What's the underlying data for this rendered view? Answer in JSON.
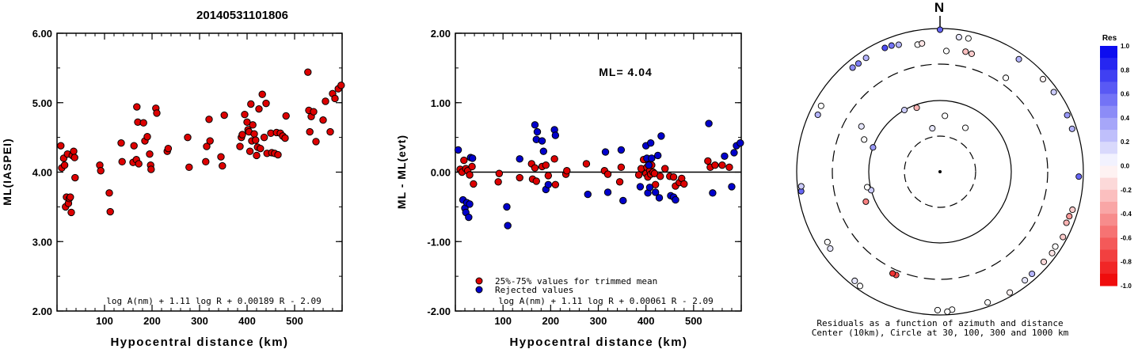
{
  "event_id": "20140531101806",
  "north_label": "N",
  "chart_data": [
    {
      "type": "scatter",
      "title": "",
      "xlabel": "Hypocentral distance (km)",
      "ylabel": "ML(IASPEI)",
      "xlim": [
        0,
        600
      ],
      "ylim": [
        2.0,
        6.0
      ],
      "xticks": [
        "100",
        "200",
        "300",
        "400",
        "500"
      ],
      "yticks": [
        "2.00",
        "3.00",
        "4.00",
        "5.00",
        "6.00"
      ],
      "formula": "log A(nm) + 1.11 log R + 0.00189 R - 2.09",
      "points": [
        [
          8,
          4.38
        ],
        [
          10,
          4.06
        ],
        [
          14,
          4.2
        ],
        [
          16,
          4.1
        ],
        [
          18,
          3.5
        ],
        [
          20,
          3.64
        ],
        [
          22,
          4.26
        ],
        [
          24,
          3.55
        ],
        [
          26,
          3.62
        ],
        [
          28,
          3.64
        ],
        [
          30,
          3.42
        ],
        [
          32,
          4.24
        ],
        [
          35,
          4.3
        ],
        [
          37,
          4.21
        ],
        [
          38,
          3.92
        ],
        [
          90,
          4.1
        ],
        [
          92,
          4.02
        ],
        [
          110,
          3.7
        ],
        [
          112,
          3.43
        ],
        [
          135,
          4.42
        ],
        [
          137,
          4.15
        ],
        [
          160,
          4.14
        ],
        [
          162,
          4.38
        ],
        [
          167,
          4.18
        ],
        [
          168,
          4.94
        ],
        [
          170,
          4.72
        ],
        [
          172,
          4.12
        ],
        [
          182,
          4.71
        ],
        [
          185,
          4.45
        ],
        [
          190,
          4.51
        ],
        [
          195,
          4.26
        ],
        [
          197,
          4.1
        ],
        [
          198,
          4.04
        ],
        [
          208,
          4.92
        ],
        [
          210,
          4.85
        ],
        [
          232,
          4.3
        ],
        [
          234,
          4.34
        ],
        [
          275,
          4.5
        ],
        [
          278,
          4.07
        ],
        [
          313,
          4.15
        ],
        [
          315,
          4.37
        ],
        [
          320,
          4.76
        ],
        [
          322,
          4.45
        ],
        [
          345,
          4.22
        ],
        [
          348,
          4.09
        ],
        [
          352,
          4.82
        ],
        [
          385,
          4.37
        ],
        [
          388,
          4.5
        ],
        [
          390,
          4.54
        ],
        [
          395,
          4.83
        ],
        [
          400,
          4.72
        ],
        [
          402,
          4.61
        ],
        [
          404,
          4.58
        ],
        [
          406,
          4.3
        ],
        [
          408,
          4.98
        ],
        [
          410,
          4.45
        ],
        [
          412,
          4.68
        ],
        [
          415,
          4.55
        ],
        [
          418,
          4.46
        ],
        [
          420,
          4.24
        ],
        [
          422,
          4.36
        ],
        [
          425,
          4.91
        ],
        [
          428,
          4.34
        ],
        [
          432,
          5.12
        ],
        [
          436,
          4.5
        ],
        [
          440,
          4.99
        ],
        [
          442,
          4.27
        ],
        [
          450,
          4.56
        ],
        [
          452,
          4.28
        ],
        [
          458,
          4.27
        ],
        [
          462,
          4.57
        ],
        [
          465,
          4.25
        ],
        [
          470,
          4.56
        ],
        [
          475,
          4.52
        ],
        [
          480,
          4.49
        ],
        [
          482,
          4.81
        ],
        [
          528,
          5.44
        ],
        [
          530,
          4.89
        ],
        [
          532,
          4.58
        ],
        [
          535,
          4.8
        ],
        [
          540,
          4.87
        ],
        [
          545,
          4.44
        ],
        [
          560,
          4.75
        ],
        [
          565,
          5.02
        ],
        [
          575,
          4.58
        ],
        [
          580,
          5.13
        ],
        [
          585,
          5.06
        ],
        [
          592,
          5.2
        ],
        [
          598,
          5.25
        ]
      ]
    },
    {
      "type": "scatter",
      "title": "",
      "xlabel": "Hypocentral distance (km)",
      "ylabel": "ML - ML(evt)",
      "xlim": [
        0,
        600
      ],
      "ylim": [
        -2.0,
        2.0
      ],
      "xticks": [
        "100",
        "200",
        "300",
        "400",
        "500"
      ],
      "yticks": [
        "-2.00",
        "-1.00",
        "0.00",
        "1.00",
        "2.00"
      ],
      "annotation": "ML= 4.04",
      "legend": [
        {
          "label": "25%-75% values for trimmed mean",
          "color": "#dd0000"
        },
        {
          "label": "Rejected values",
          "color": "#0000cc"
        }
      ],
      "formula": "log A(nm) + 1.11 log R + 0.00061 R - 2.09",
      "trimmed_points": [
        [
          10,
          0.04
        ],
        [
          14,
          0.0
        ],
        [
          18,
          0.17
        ],
        [
          22,
          0.05
        ],
        [
          26,
          0.02
        ],
        [
          30,
          -0.04
        ],
        [
          35,
          0.08
        ],
        [
          38,
          -0.17
        ],
        [
          90,
          -0.14
        ],
        [
          92,
          -0.02
        ],
        [
          135,
          -0.08
        ],
        [
          160,
          0.12
        ],
        [
          162,
          -0.1
        ],
        [
          167,
          0.06
        ],
        [
          170,
          -0.13
        ],
        [
          182,
          0.08
        ],
        [
          190,
          0.1
        ],
        [
          195,
          -0.05
        ],
        [
          208,
          0.19
        ],
        [
          210,
          -0.18
        ],
        [
          232,
          -0.03
        ],
        [
          234,
          0.02
        ],
        [
          275,
          0.12
        ],
        [
          313,
          0.02
        ],
        [
          320,
          -0.03
        ],
        [
          345,
          -0.14
        ],
        [
          348,
          0.07
        ],
        [
          385,
          -0.04
        ],
        [
          390,
          0.05
        ],
        [
          395,
          0.18
        ],
        [
          400,
          -0.02
        ],
        [
          402,
          0.07
        ],
        [
          404,
          -0.07
        ],
        [
          406,
          0.14
        ],
        [
          408,
          0.02
        ],
        [
          410,
          -0.03
        ],
        [
          412,
          0.1
        ],
        [
          415,
          0.0
        ],
        [
          418,
          -0.02
        ],
        [
          420,
          -0.18
        ],
        [
          430,
          -0.06
        ],
        [
          440,
          0.05
        ],
        [
          450,
          -0.06
        ],
        [
          458,
          -0.07
        ],
        [
          462,
          -0.2
        ],
        [
          470,
          -0.15
        ],
        [
          475,
          -0.09
        ],
        [
          480,
          -0.17
        ],
        [
          530,
          0.16
        ],
        [
          535,
          0.07
        ],
        [
          545,
          0.1
        ],
        [
          560,
          0.1
        ],
        [
          575,
          0.07
        ]
      ],
      "rejected_points": [
        [
          6,
          0.32
        ],
        [
          16,
          -0.4
        ],
        [
          20,
          -0.52
        ],
        [
          22,
          -0.58
        ],
        [
          24,
          -0.44
        ],
        [
          28,
          -0.65
        ],
        [
          30,
          -0.46
        ],
        [
          32,
          0.21
        ],
        [
          36,
          0.2
        ],
        [
          108,
          -0.5
        ],
        [
          110,
          -0.77
        ],
        [
          135,
          0.19
        ],
        [
          167,
          0.68
        ],
        [
          170,
          0.47
        ],
        [
          172,
          0.58
        ],
        [
          182,
          0.45
        ],
        [
          185,
          0.3
        ],
        [
          190,
          -0.25
        ],
        [
          195,
          -0.18
        ],
        [
          208,
          0.61
        ],
        [
          210,
          0.53
        ],
        [
          278,
          -0.32
        ],
        [
          315,
          0.29
        ],
        [
          320,
          -0.29
        ],
        [
          348,
          0.32
        ],
        [
          352,
          -0.41
        ],
        [
          388,
          -0.21
        ],
        [
          400,
          0.38
        ],
        [
          402,
          0.2
        ],
        [
          404,
          -0.3
        ],
        [
          406,
          0.1
        ],
        [
          408,
          -0.22
        ],
        [
          410,
          0.42
        ],
        [
          412,
          0.2
        ],
        [
          420,
          -0.29
        ],
        [
          425,
          0.24
        ],
        [
          428,
          -0.37
        ],
        [
          432,
          0.52
        ],
        [
          452,
          -0.34
        ],
        [
          458,
          -0.36
        ],
        [
          462,
          -0.4
        ],
        [
          532,
          0.7
        ],
        [
          540,
          -0.3
        ],
        [
          565,
          0.23
        ],
        [
          580,
          -0.21
        ],
        [
          585,
          0.28
        ],
        [
          590,
          0.38
        ],
        [
          598,
          0.42
        ]
      ]
    },
    {
      "type": "polar-scatter",
      "title": "",
      "caption_line1": "Residuals as a function of azimuth and distance",
      "caption_line2": "Center (10km), Circle at 30, 100, 300 and 1000 km",
      "colorbar_title": "Res",
      "colorbar_range": [
        -1.0,
        1.0
      ],
      "colorbar_ticks": [
        "1.0",
        "0.8",
        "0.6",
        "0.4",
        "0.2",
        "0.0",
        "-0.2",
        "-0.4",
        "-0.6",
        "-0.8",
        "-1.0"
      ],
      "color_pos": "#0000ee",
      "color_neg": "#ee0000",
      "points": [
        {
          "az": 0,
          "d": 960,
          "res": 0.6
        },
        {
          "az": 8,
          "d": 780,
          "res": 0.1
        },
        {
          "az": 12,
          "d": 790,
          "res": 0.0
        },
        {
          "az": 35,
          "d": 820,
          "res": 0.3
        },
        {
          "az": 48,
          "d": 850,
          "res": -0.05
        },
        {
          "az": 55,
          "d": 860,
          "res": 0.2
        },
        {
          "az": 66,
          "d": 870,
          "res": 0.4
        },
        {
          "az": 72,
          "d": 860,
          "res": 0.3
        },
        {
          "az": 92,
          "d": 860,
          "res": 0.6
        },
        {
          "az": 106,
          "d": 830,
          "res": -0.2
        },
        {
          "az": 109,
          "d": 800,
          "res": -0.4
        },
        {
          "az": 112,
          "d": 790,
          "res": -0.3
        },
        {
          "az": 118,
          "d": 870,
          "res": -0.2
        },
        {
          "az": 123,
          "d": 820,
          "res": 0.0
        },
        {
          "az": 126,
          "d": 850,
          "res": -0.1
        },
        {
          "az": 131,
          "d": 820,
          "res": -0.15
        },
        {
          "az": 138,
          "d": 820,
          "res": 0.3
        },
        {
          "az": 142,
          "d": 830,
          "res": 0.1
        },
        {
          "az": 150,
          "d": 880,
          "res": -0.05
        },
        {
          "az": 160,
          "d": 870,
          "res": 0.0
        },
        {
          "az": 175,
          "d": 850,
          "res": 0.0
        },
        {
          "az": 177,
          "d": 900,
          "res": 0.0
        },
        {
          "az": 181,
          "d": 850,
          "res": 0.0
        },
        {
          "az": 203,
          "d": 350,
          "res": -0.7
        },
        {
          "az": 205,
          "d": 350,
          "res": -0.8
        },
        {
          "az": 215,
          "d": 880,
          "res": 0.0
        },
        {
          "az": 218,
          "d": 850,
          "res": 0.1
        },
        {
          "az": 235,
          "d": 730,
          "res": 0.1
        },
        {
          "az": 238,
          "d": 700,
          "res": 0.0
        },
        {
          "az": 262,
          "d": 900,
          "res": 0.6
        },
        {
          "az": 264,
          "d": 880,
          "res": 0.2
        },
        {
          "az": 248,
          "d": 130,
          "res": -0.5
        },
        {
          "az": 255,
          "d": 100,
          "res": 0.2
        },
        {
          "az": 258,
          "d": 110,
          "res": 0.0
        },
        {
          "az": 290,
          "d": 100,
          "res": 0.4
        },
        {
          "az": 293,
          "d": 140,
          "res": 0.0
        },
        {
          "az": 300,
          "d": 180,
          "res": 0.1
        },
        {
          "az": 295,
          "d": 750,
          "res": 0.3
        },
        {
          "az": 299,
          "d": 780,
          "res": 0.0
        },
        {
          "az": 320,
          "d": 780,
          "res": 0.45
        },
        {
          "az": 323,
          "d": 770,
          "res": 0.5
        },
        {
          "az": 327,
          "d": 775,
          "res": 0.3
        },
        {
          "az": 336,
          "d": 770,
          "res": 0.7
        },
        {
          "az": 339,
          "d": 760,
          "res": 0.55
        },
        {
          "az": 342,
          "d": 720,
          "res": 0.3
        },
        {
          "az": 350,
          "d": 620,
          "res": 0.0
        },
        {
          "az": 352,
          "d": 630,
          "res": -0.1
        },
        {
          "az": 3,
          "d": 470,
          "res": 0.0
        },
        {
          "az": 12,
          "d": 500,
          "res": -0.25
        },
        {
          "az": 15,
          "d": 490,
          "res": -0.2
        },
        {
          "az": 35,
          "d": 380,
          "res": 0.0
        },
        {
          "az": 340,
          "d": 90,
          "res": -0.3
        },
        {
          "az": 330,
          "d": 100,
          "res": 0.2
        },
        {
          "az": 30,
          "d": 50,
          "res": 0.0
        },
        {
          "az": 350,
          "d": 40,
          "res": 0.1
        },
        {
          "az": 5,
          "d": 60,
          "res": 0.0
        }
      ]
    }
  ]
}
